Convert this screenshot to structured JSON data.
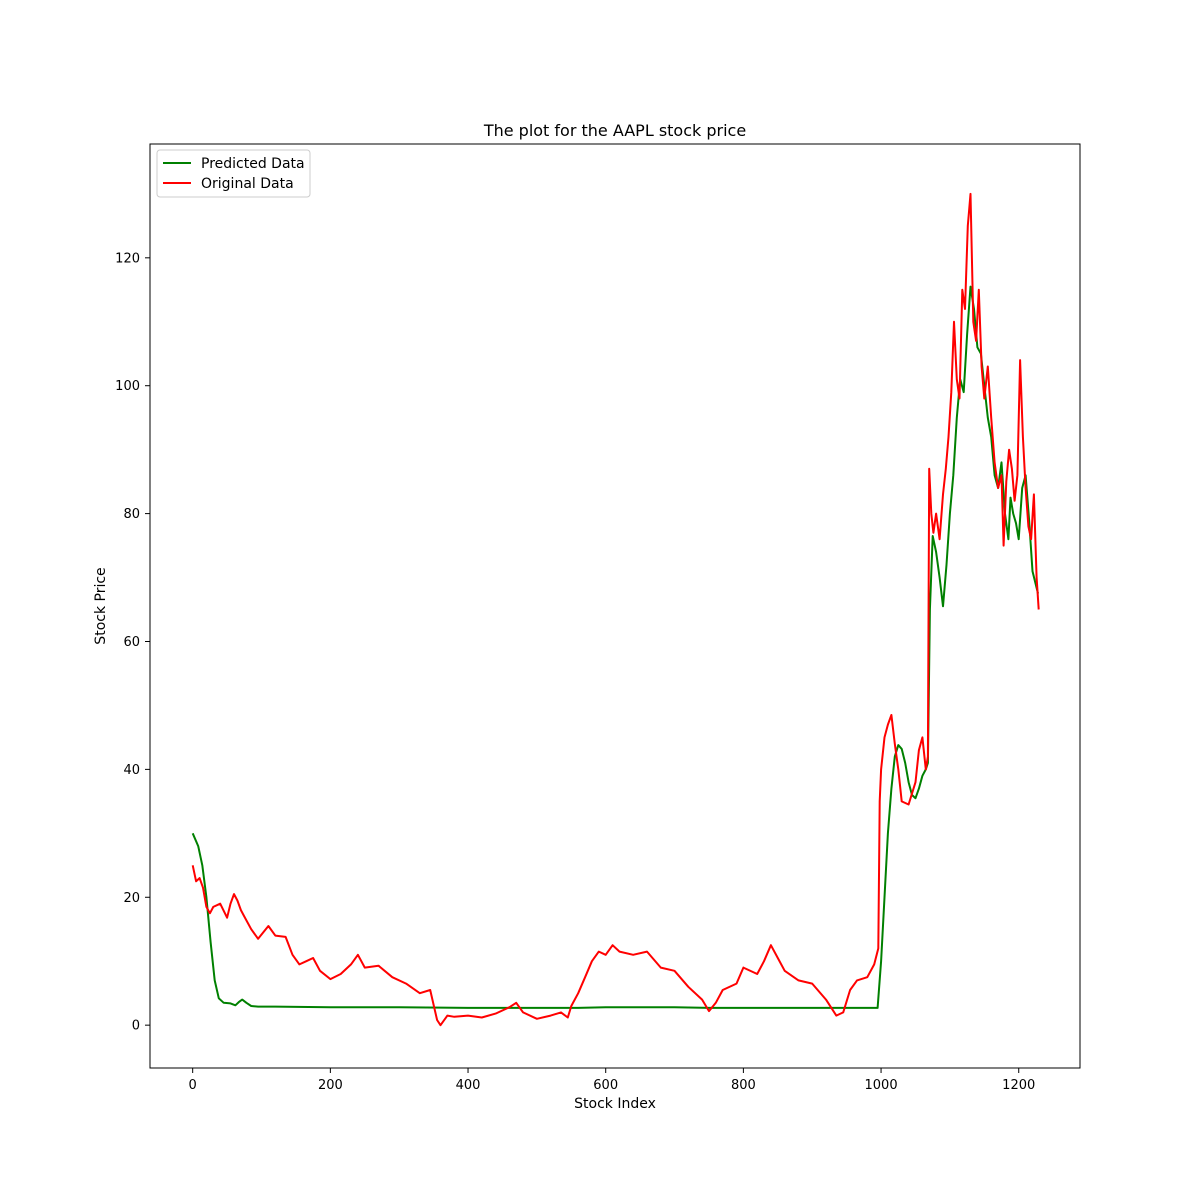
{
  "chart_data": {
    "type": "line",
    "title": "The plot for the AAPL stock price",
    "xlabel": "Stock Index",
    "ylabel": "Stock Price",
    "xlim": [
      -62,
      1289
    ],
    "ylim": [
      -6.7,
      137.8
    ],
    "xticks": [
      0,
      200,
      400,
      600,
      800,
      1000,
      1200
    ],
    "yticks": [
      0,
      20,
      40,
      60,
      80,
      100,
      120
    ],
    "grid": false,
    "legend_position": "top-left",
    "series": [
      {
        "name": "Predicted Data",
        "color": "#008000",
        "points": [
          [
            0,
            30
          ],
          [
            8,
            28
          ],
          [
            14,
            25
          ],
          [
            20,
            20
          ],
          [
            26,
            13
          ],
          [
            32,
            7
          ],
          [
            38,
            4.2
          ],
          [
            45,
            3.5
          ],
          [
            55,
            3.4
          ],
          [
            62,
            3.1
          ],
          [
            67,
            3.6
          ],
          [
            72,
            4.0
          ],
          [
            78,
            3.5
          ],
          [
            85,
            3.0
          ],
          [
            95,
            2.9
          ],
          [
            120,
            2.9
          ],
          [
            200,
            2.8
          ],
          [
            300,
            2.8
          ],
          [
            400,
            2.7
          ],
          [
            500,
            2.7
          ],
          [
            560,
            2.7
          ],
          [
            600,
            2.8
          ],
          [
            700,
            2.8
          ],
          [
            750,
            2.7
          ],
          [
            800,
            2.7
          ],
          [
            900,
            2.7
          ],
          [
            995,
            2.7
          ],
          [
            1000,
            10
          ],
          [
            1005,
            20
          ],
          [
            1010,
            30
          ],
          [
            1015,
            37
          ],
          [
            1020,
            42
          ],
          [
            1025,
            43.8
          ],
          [
            1030,
            43.2
          ],
          [
            1035,
            41
          ],
          [
            1040,
            38
          ],
          [
            1045,
            36
          ],
          [
            1050,
            35.5
          ],
          [
            1055,
            37
          ],
          [
            1060,
            39
          ],
          [
            1065,
            40
          ],
          [
            1068,
            41
          ],
          [
            1071,
            65
          ],
          [
            1075,
            76.5
          ],
          [
            1080,
            74
          ],
          [
            1085,
            70
          ],
          [
            1090,
            65.5
          ],
          [
            1095,
            72
          ],
          [
            1100,
            80
          ],
          [
            1105,
            86
          ],
          [
            1110,
            95
          ],
          [
            1115,
            101
          ],
          [
            1120,
            99
          ],
          [
            1125,
            108
          ],
          [
            1130,
            115.5
          ],
          [
            1135,
            112
          ],
          [
            1140,
            106
          ],
          [
            1145,
            105
          ],
          [
            1150,
            100
          ],
          [
            1155,
            95
          ],
          [
            1160,
            92
          ],
          [
            1165,
            86
          ],
          [
            1170,
            84
          ],
          [
            1175,
            88
          ],
          [
            1180,
            80
          ],
          [
            1185,
            76
          ],
          [
            1188,
            82.5
          ],
          [
            1192,
            80
          ],
          [
            1196,
            78.5
          ],
          [
            1200,
            76
          ],
          [
            1205,
            84
          ],
          [
            1210,
            86
          ],
          [
            1215,
            79
          ],
          [
            1220,
            71
          ],
          [
            1228,
            67.5
          ]
        ]
      },
      {
        "name": "Original Data",
        "color": "#ff0000",
        "points": [
          [
            0,
            25
          ],
          [
            5,
            22.5
          ],
          [
            10,
            23
          ],
          [
            15,
            21.5
          ],
          [
            20,
            18.5
          ],
          [
            25,
            17.5
          ],
          [
            30,
            18.5
          ],
          [
            40,
            19
          ],
          [
            50,
            16.8
          ],
          [
            55,
            19
          ],
          [
            60,
            20.5
          ],
          [
            65,
            19.5
          ],
          [
            70,
            18
          ],
          [
            75,
            17
          ],
          [
            85,
            15
          ],
          [
            95,
            13.5
          ],
          [
            110,
            15.5
          ],
          [
            120,
            14
          ],
          [
            135,
            13.8
          ],
          [
            145,
            11
          ],
          [
            155,
            9.5
          ],
          [
            165,
            10
          ],
          [
            175,
            10.5
          ],
          [
            185,
            8.5
          ],
          [
            200,
            7.2
          ],
          [
            215,
            8
          ],
          [
            230,
            9.5
          ],
          [
            240,
            11
          ],
          [
            250,
            9
          ],
          [
            270,
            9.3
          ],
          [
            290,
            7.5
          ],
          [
            310,
            6.5
          ],
          [
            330,
            5
          ],
          [
            345,
            5.5
          ],
          [
            355,
            0.8
          ],
          [
            360,
            0
          ],
          [
            370,
            1.5
          ],
          [
            380,
            1.3
          ],
          [
            400,
            1.5
          ],
          [
            420,
            1.2
          ],
          [
            440,
            1.8
          ],
          [
            460,
            2.8
          ],
          [
            470,
            3.5
          ],
          [
            480,
            2
          ],
          [
            500,
            1
          ],
          [
            520,
            1.5
          ],
          [
            535,
            2
          ],
          [
            545,
            1.2
          ],
          [
            550,
            3
          ],
          [
            560,
            5
          ],
          [
            570,
            7.5
          ],
          [
            580,
            10
          ],
          [
            590,
            11.5
          ],
          [
            600,
            11
          ],
          [
            610,
            12.5
          ],
          [
            620,
            11.5
          ],
          [
            640,
            11
          ],
          [
            660,
            11.5
          ],
          [
            680,
            9
          ],
          [
            700,
            8.5
          ],
          [
            720,
            6
          ],
          [
            740,
            4
          ],
          [
            750,
            2.2
          ],
          [
            760,
            3.5
          ],
          [
            770,
            5.5
          ],
          [
            790,
            6.5
          ],
          [
            800,
            9
          ],
          [
            820,
            8
          ],
          [
            830,
            10
          ],
          [
            840,
            12.5
          ],
          [
            850,
            10.5
          ],
          [
            860,
            8.5
          ],
          [
            880,
            7
          ],
          [
            900,
            6.5
          ],
          [
            920,
            4
          ],
          [
            935,
            1.5
          ],
          [
            945,
            2
          ],
          [
            955,
            5.5
          ],
          [
            965,
            7
          ],
          [
            980,
            7.5
          ],
          [
            990,
            9.5
          ],
          [
            996,
            12
          ],
          [
            998,
            35
          ],
          [
            1000,
            40
          ],
          [
            1005,
            45
          ],
          [
            1010,
            47
          ],
          [
            1015,
            48.5
          ],
          [
            1020,
            44
          ],
          [
            1025,
            40
          ],
          [
            1030,
            35
          ],
          [
            1040,
            34.5
          ],
          [
            1050,
            38
          ],
          [
            1055,
            43
          ],
          [
            1060,
            45
          ],
          [
            1065,
            40
          ],
          [
            1068,
            42
          ],
          [
            1070,
            87
          ],
          [
            1073,
            80
          ],
          [
            1076,
            77
          ],
          [
            1080,
            80
          ],
          [
            1085,
            76
          ],
          [
            1090,
            83
          ],
          [
            1094,
            87
          ],
          [
            1098,
            92
          ],
          [
            1102,
            99
          ],
          [
            1106,
            110
          ],
          [
            1110,
            101
          ],
          [
            1114,
            98
          ],
          [
            1118,
            115
          ],
          [
            1122,
            112
          ],
          [
            1126,
            125
          ],
          [
            1130,
            130
          ],
          [
            1134,
            110
          ],
          [
            1138,
            107
          ],
          [
            1142,
            115
          ],
          [
            1146,
            103
          ],
          [
            1150,
            98
          ],
          [
            1155,
            103
          ],
          [
            1160,
            95
          ],
          [
            1165,
            88
          ],
          [
            1170,
            84
          ],
          [
            1175,
            86
          ],
          [
            1178,
            75
          ],
          [
            1182,
            85
          ],
          [
            1186,
            90
          ],
          [
            1190,
            87
          ],
          [
            1194,
            82
          ],
          [
            1198,
            86
          ],
          [
            1202,
            104
          ],
          [
            1206,
            92
          ],
          [
            1210,
            84
          ],
          [
            1214,
            78
          ],
          [
            1218,
            76
          ],
          [
            1222,
            83
          ],
          [
            1226,
            70
          ],
          [
            1229,
            65
          ]
        ]
      }
    ]
  }
}
